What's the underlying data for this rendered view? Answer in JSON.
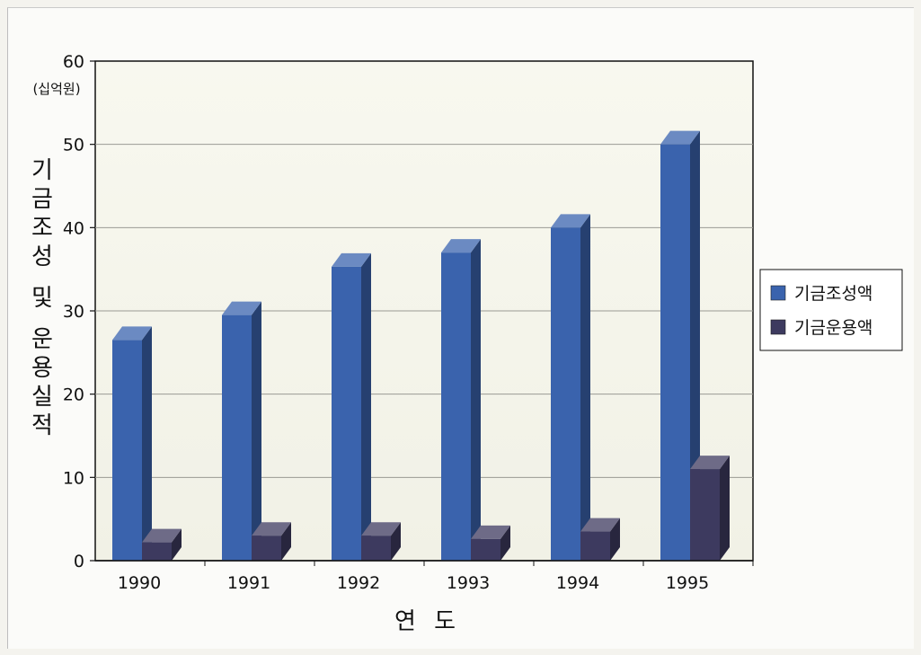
{
  "chart_data": {
    "type": "bar",
    "title": "",
    "categories": [
      "1990",
      "1991",
      "1992",
      "1993",
      "1994",
      "1995"
    ],
    "series": [
      {
        "name": "기금조성액",
        "values": [
          26.5,
          29.5,
          35.3,
          37.0,
          40.0,
          50.0
        ],
        "color": "#3a63ad"
      },
      {
        "name": "기금운용액",
        "values": [
          2.2,
          3.0,
          3.0,
          2.6,
          3.5,
          11.0
        ],
        "color": "#3d3a5f"
      }
    ],
    "xlabel": "연 도",
    "ylabel": "기금조성 및 운용실적",
    "yunit": "(십억원)",
    "ylim": [
      0,
      60
    ],
    "yticks": [
      "0",
      "10",
      "20",
      "30",
      "40",
      "50",
      "60"
    ],
    "grid": true,
    "legend_position": "right"
  }
}
